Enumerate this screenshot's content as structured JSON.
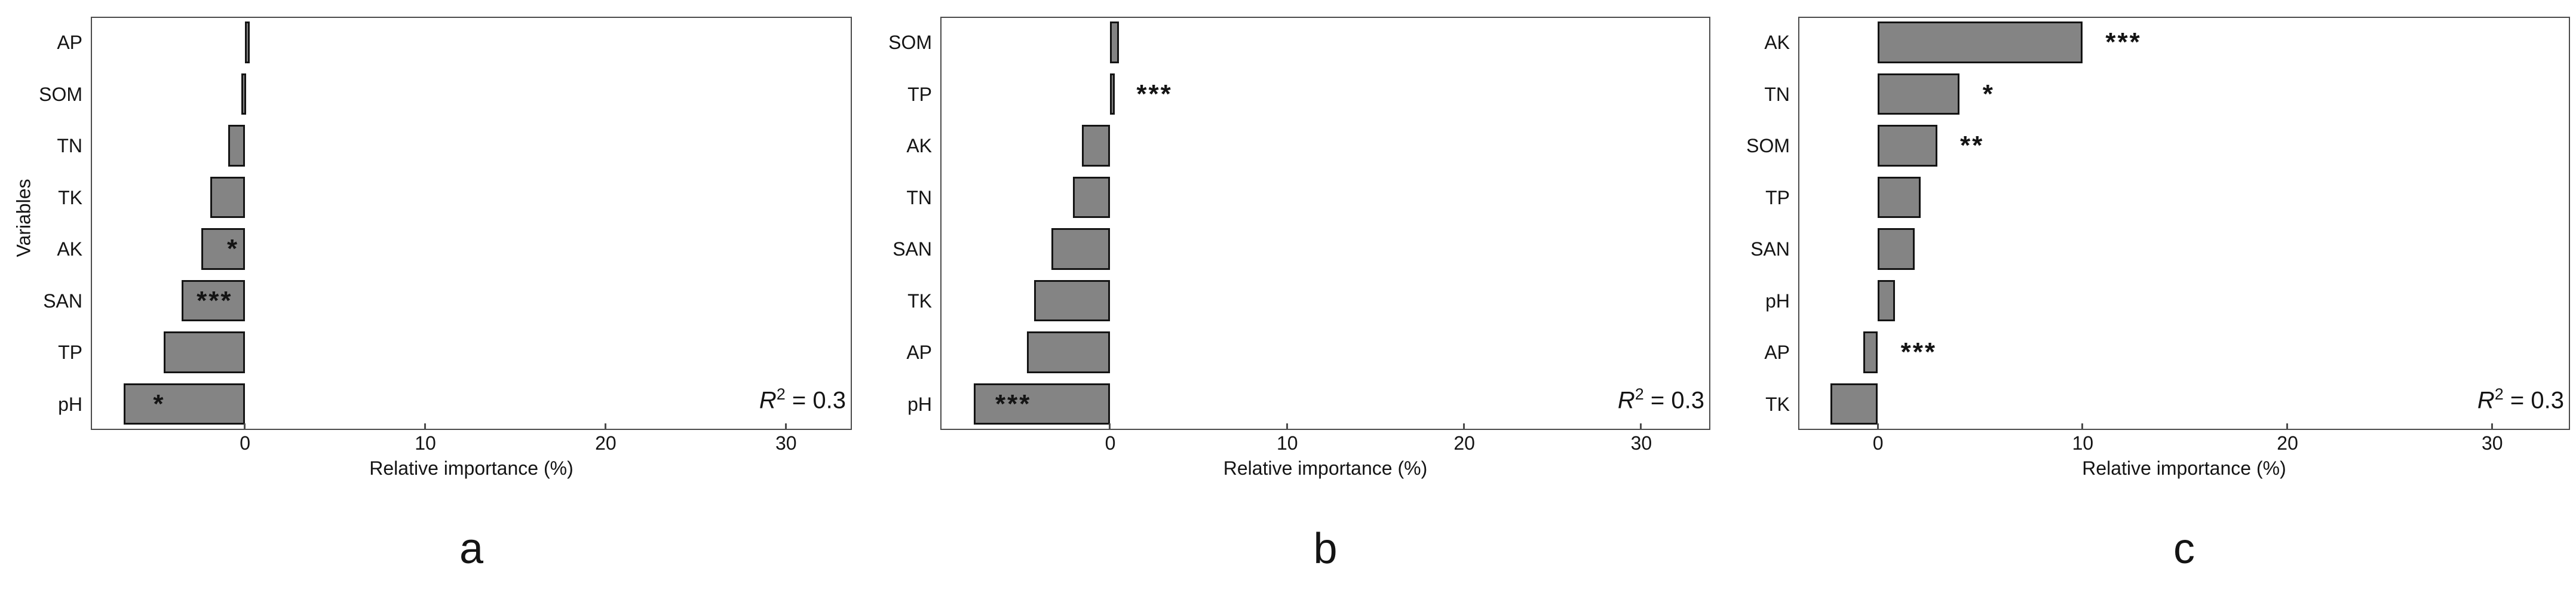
{
  "figure": {
    "background": "#ffffff",
    "bar_fill": "#848484",
    "bar_edge": "#141414",
    "panel_border": "#4b4b4b",
    "text_color": "#141414"
  },
  "chart_data": [
    {
      "type": "bar",
      "orientation": "horizontal",
      "caption": "a",
      "xlabel": "Relative importance (%)",
      "ylabel": "Variables",
      "r2_base": "R",
      "r2_sup": "2",
      "r2_rest": " = 0.3",
      "xlim": [
        -8.55,
        33.65
      ],
      "xticks": [
        0,
        10,
        20,
        30
      ],
      "grid": false,
      "categories": [
        "AP",
        "SOM",
        "TN",
        "TK",
        "AK",
        "SAN",
        "TP",
        "pH"
      ],
      "values": [
        0.1,
        -0.2,
        -0.9,
        -1.9,
        -2.4,
        -3.5,
        -4.5,
        -6.7
      ],
      "significance": [
        "",
        "",
        "",
        "",
        "*",
        "***",
        "",
        "*"
      ],
      "sig_placement": [
        "",
        "",
        "",
        "",
        "in-right",
        "in-center",
        "",
        "in-left"
      ]
    },
    {
      "type": "bar",
      "orientation": "horizontal",
      "caption": "b",
      "xlabel": "Relative importance (%)",
      "ylabel": "",
      "r2_base": "R",
      "r2_sup": "2",
      "r2_rest": " = 0.3",
      "xlim": [
        -9.6,
        33.9
      ],
      "xticks": [
        0,
        10,
        20,
        30
      ],
      "grid": false,
      "categories": [
        "SOM",
        "TP",
        "AK",
        "TN",
        "SAN",
        "TK",
        "AP",
        "pH"
      ],
      "values": [
        0.5,
        0.2,
        -1.6,
        -2.1,
        -3.3,
        -4.3,
        -4.7,
        -7.7
      ],
      "significance": [
        "",
        "***",
        "",
        "",
        "",
        "",
        "",
        "***"
      ],
      "sig_placement": [
        "",
        "out-right",
        "",
        "",
        "",
        "",
        "",
        "in-left"
      ]
    },
    {
      "type": "bar",
      "orientation": "horizontal",
      "caption": "c",
      "xlabel": "Relative importance (%)",
      "ylabel": "",
      "r2_base": "R",
      "r2_sup": "2",
      "r2_rest": " = 0.3",
      "xlim": [
        -3.9,
        33.8
      ],
      "xticks": [
        0,
        10,
        20,
        30
      ],
      "grid": false,
      "categories": [
        "AK",
        "TN",
        "SOM",
        "TP",
        "SAN",
        "pH",
        "AP",
        "TK"
      ],
      "values": [
        10.0,
        4.0,
        2.9,
        2.1,
        1.8,
        0.85,
        -0.7,
        -2.3
      ],
      "significance": [
        "***",
        "*",
        "**",
        "",
        "",
        "",
        "***",
        ""
      ],
      "sig_placement": [
        "out-right",
        "out-right",
        "out-right",
        "",
        "",
        "",
        "out-right",
        ""
      ]
    }
  ]
}
